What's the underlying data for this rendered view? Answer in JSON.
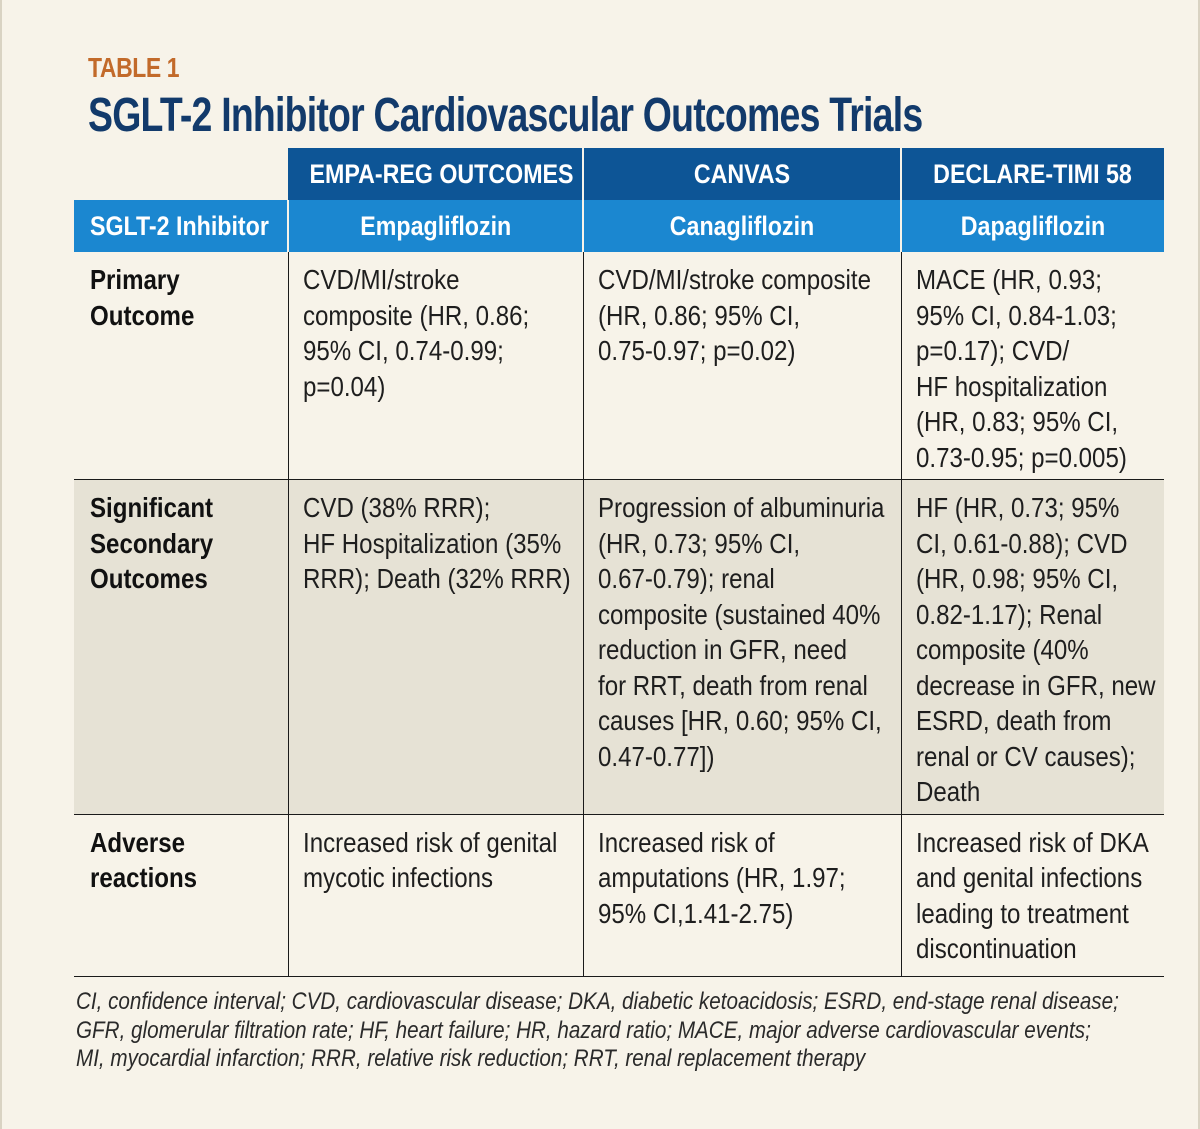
{
  "table_label": "TABLE 1",
  "title": "SGLT-2 Inhibitor Cardiovascular Outcomes Trials",
  "columns": {
    "trials": [
      "EMPA-REG OUTCOMES",
      "CANVAS",
      "DECLARE-TIMI 58"
    ],
    "row_label": "SGLT-2 Inhibitor",
    "inhibitors": [
      "Empagliflozin",
      "Canagliflozin",
      "Dapagliflozin"
    ]
  },
  "rows": {
    "primary": {
      "label": [
        "Primary",
        "Outcome"
      ],
      "empa": [
        "CVD/MI/stroke",
        "composite (HR, 0.86;",
        "95% CI, 0.74-0.99;",
        "p=0.04)"
      ],
      "cana": [
        "CVD/MI/stroke composite",
        "(HR, 0.86; 95% CI,",
        "0.75-0.97; p=0.02)"
      ],
      "dapa": [
        "MACE (HR, 0.93;",
        "95% CI, 0.84-1.03;",
        "p=0.17); CVD/",
        "HF hospitalization",
        "(HR, 0.83; 95% CI,",
        "0.73-0.95; p=0.005)"
      ]
    },
    "secondary": {
      "label": [
        "Significant",
        "Secondary",
        "Outcomes"
      ],
      "empa": [
        "CVD (38% RRR);",
        "HF Hospitalization (35%",
        "RRR); Death (32% RRR)"
      ],
      "cana": [
        "Progression of albuminuria",
        "(HR, 0.73; 95% CI,",
        "0.67-0.79); renal",
        "composite (sustained 40%",
        "reduction in GFR, need",
        "for RRT, death from renal",
        "causes [HR, 0.60; 95% CI,",
        "0.47-0.77])"
      ],
      "dapa": [
        "HF (HR, 0.73; 95%",
        "CI,  0.61-0.88); CVD",
        "(HR, 0.98; 95% CI,",
        "0.82-1.17); Renal",
        "composite (40%",
        "decrease in GFR, new",
        "ESRD, death from",
        "renal or CV causes);",
        "Death"
      ]
    },
    "adverse": {
      "label": [
        "Adverse",
        "reactions"
      ],
      "empa": [
        "Increased risk of genital",
        "mycotic infections"
      ],
      "cana": [
        "Increased risk of",
        "amputations (HR, 1.97;",
        "95% CI,1.41-2.75)"
      ],
      "dapa": [
        "Increased risk of DKA",
        "and genital infections",
        "leading to treatment",
        "discontinuation"
      ]
    }
  },
  "footnote": [
    "CI, confidence interval; CVD, cardiovascular disease; DKA, diabetic ketoacidosis; ESRD, end-stage renal disease;",
    "GFR, glomerular filtration rate; HF, heart failure; HR, hazard ratio; MACE, major adverse cardiovascular events;",
    "MI, myocardial infarction; RRR, relative risk reduction; RRT, renal replacement therapy"
  ]
}
